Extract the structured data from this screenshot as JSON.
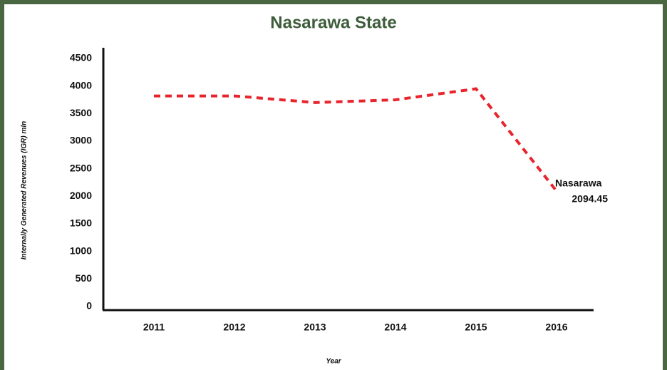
{
  "chart_data": {
    "type": "line",
    "title": "Nasarawa State",
    "x_label": "Year",
    "y_label": "Internally Generated Revenues (IGR)  mln",
    "categories": [
      "2011",
      "2012",
      "2013",
      "2014",
      "2015",
      "2016"
    ],
    "series": [
      {
        "name": "Nasarawa",
        "color": "#e8242c",
        "values": [
          3820,
          3820,
          3700,
          3750,
          3950,
          2094.45
        ]
      }
    ],
    "ylim": [
      0,
      4500
    ],
    "yticks": [
      0,
      500,
      1000,
      1500,
      2000,
      2500,
      3000,
      3500,
      4000,
      4500
    ]
  }
}
